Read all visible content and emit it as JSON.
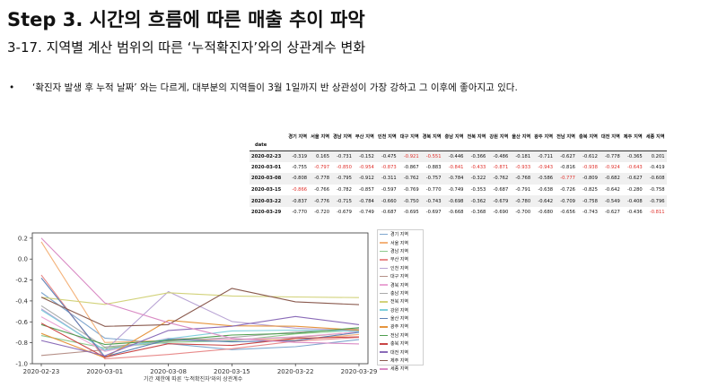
{
  "header": {
    "title": "Step 3.  시간의 흐름에 따른 매출 추이 파악",
    "subtitle": "3-17. 지역별 계산 범위의 따른 ‘누적확진자’와의 상관계수 변화",
    "bullet": "‘확진자 발생 후 누적 날짜’ 와는 다르게, 대부분의 지역들이 3월 1일까지 반 상관성이 가장 강하고 그 이후에 좋아지고 있다."
  },
  "table": {
    "index_label": "date",
    "columns": [
      "경기 지역",
      "서울 지역",
      "경남 지역",
      "부산 지역",
      "인천 지역",
      "대구 지역",
      "경북 지역",
      "충남 지역",
      "전북 지역",
      "강원 지역",
      "울산 지역",
      "광주 지역",
      "전남 지역",
      "충북 지역",
      "대전 지역",
      "제주 지역",
      "세종 지역"
    ],
    "rows": [
      {
        "date": "2020-02-23",
        "values": [
          "-0.319",
          "0.165",
          "-0.731",
          "-0.152",
          "-0.475",
          "-0.921",
          "-0.551",
          "-0.446",
          "-0.366",
          "-0.486",
          "-0.181",
          "-0.711",
          "-0.627",
          "-0.612",
          "-0.778",
          "-0.365",
          "0.201"
        ],
        "red": [
          5,
          6
        ]
      },
      {
        "date": "2020-03-01",
        "values": [
          "-0.755",
          "-0.797",
          "-0.850",
          "-0.954",
          "-0.873",
          "-0.867",
          "-0.883",
          "-0.841",
          "-0.433",
          "-0.871",
          "-0.933",
          "-0.943",
          "-0.816",
          "-0.938",
          "-0.924",
          "-0.643",
          "-0.419"
        ],
        "red": [
          1,
          2,
          3,
          4,
          7,
          8,
          9,
          10,
          11,
          13,
          14,
          15
        ]
      },
      {
        "date": "2020-03-08",
        "values": [
          "-0.808",
          "-0.778",
          "-0.795",
          "-0.912",
          "-0.311",
          "-0.762",
          "-0.757",
          "-0.784",
          "-0.322",
          "-0.762",
          "-0.768",
          "-0.586",
          "-0.777",
          "-0.809",
          "-0.682",
          "-0.627",
          "-0.608"
        ],
        "red": [
          12
        ]
      },
      {
        "date": "2020-03-15",
        "values": [
          "-0.866",
          "-0.766",
          "-0.782",
          "-0.857",
          "-0.597",
          "-0.769",
          "-0.770",
          "-0.749",
          "-0.353",
          "-0.687",
          "-0.791",
          "-0.638",
          "-0.726",
          "-0.825",
          "-0.642",
          "-0.280",
          "-0.758"
        ],
        "red": [
          0
        ]
      },
      {
        "date": "2020-03-22",
        "values": [
          "-0.837",
          "-0.776",
          "-0.715",
          "-0.784",
          "-0.660",
          "-0.750",
          "-0.743",
          "-0.698",
          "-0.362",
          "-0.679",
          "-0.780",
          "-0.642",
          "-0.709",
          "-0.758",
          "-0.549",
          "-0.408",
          "-0.796"
        ],
        "red": []
      },
      {
        "date": "2020-03-29",
        "values": [
          "-0.770",
          "-0.720",
          "-0.679",
          "-0.749",
          "-0.687",
          "-0.695",
          "-0.697",
          "-0.668",
          "-0.368",
          "-0.690",
          "-0.700",
          "-0.680",
          "-0.656",
          "-0.743",
          "-0.627",
          "-0.436",
          "-0.811"
        ],
        "red": [
          16
        ]
      }
    ]
  },
  "chart_data": {
    "type": "line",
    "x": [
      "2020-02-23",
      "2020-03-01",
      "2020-03-08",
      "2020-03-15",
      "2020-03-22",
      "2020-03-29"
    ],
    "xlabel": "기간 제한에 따른 '누적확진자'와의 상관계수",
    "ylim": [
      -1.0,
      0.25
    ],
    "yticks": [
      0.2,
      0.0,
      -0.2,
      -0.4,
      -0.6,
      -0.8,
      -1.0
    ],
    "ytick_labels": [
      "0.2",
      "0.0",
      "-0.2",
      "-0.4",
      "-0.6",
      "-0.8",
      "-1.0"
    ],
    "grid": false,
    "legend": "right",
    "series": [
      {
        "name": "경기 지역",
        "color": "#7fa7cf",
        "values": [
          -0.319,
          -0.755,
          -0.808,
          -0.866,
          -0.837,
          -0.77
        ]
      },
      {
        "name": "서울 지역",
        "color": "#f4b27a",
        "values": [
          0.165,
          -0.797,
          -0.778,
          -0.766,
          -0.776,
          -0.72
        ]
      },
      {
        "name": "경남 지역",
        "color": "#8dc98d",
        "values": [
          -0.731,
          -0.85,
          -0.795,
          -0.782,
          -0.715,
          -0.679
        ]
      },
      {
        "name": "부산 지역",
        "color": "#e88a8a",
        "values": [
          -0.152,
          -0.954,
          -0.912,
          -0.857,
          -0.784,
          -0.749
        ]
      },
      {
        "name": "인천 지역",
        "color": "#b8a3d4",
        "values": [
          -0.475,
          -0.873,
          -0.311,
          -0.597,
          -0.66,
          -0.687
        ]
      },
      {
        "name": "대구 지역",
        "color": "#b59088",
        "values": [
          -0.921,
          -0.867,
          -0.762,
          -0.769,
          -0.75,
          -0.695
        ]
      },
      {
        "name": "경북 지역",
        "color": "#eaa6d5",
        "values": [
          -0.551,
          -0.883,
          -0.757,
          -0.77,
          -0.743,
          -0.697
        ]
      },
      {
        "name": "충남 지역",
        "color": "#aaaaaa",
        "values": [
          -0.446,
          -0.841,
          -0.784,
          -0.749,
          -0.698,
          -0.668
        ]
      },
      {
        "name": "전북 지역",
        "color": "#d2d27a",
        "values": [
          -0.366,
          -0.433,
          -0.322,
          -0.353,
          -0.362,
          -0.368
        ]
      },
      {
        "name": "강원 지역",
        "color": "#7fd0dc",
        "values": [
          -0.486,
          -0.871,
          -0.762,
          -0.687,
          -0.679,
          -0.69
        ]
      },
      {
        "name": "울산 지역",
        "color": "#5b7fb5",
        "values": [
          -0.181,
          -0.933,
          -0.768,
          -0.791,
          -0.78,
          -0.7
        ]
      },
      {
        "name": "광주 지역",
        "color": "#e6953e",
        "values": [
          -0.711,
          -0.943,
          -0.586,
          -0.638,
          -0.642,
          -0.68
        ]
      },
      {
        "name": "전남 지역",
        "color": "#4e9e4e",
        "values": [
          -0.627,
          -0.816,
          -0.777,
          -0.726,
          -0.709,
          -0.656
        ]
      },
      {
        "name": "충북 지역",
        "color": "#c94545",
        "values": [
          -0.612,
          -0.938,
          -0.809,
          -0.825,
          -0.758,
          -0.743
        ]
      },
      {
        "name": "대전 지역",
        "color": "#8a6bb8",
        "values": [
          -0.778,
          -0.924,
          -0.682,
          -0.642,
          -0.549,
          -0.627
        ]
      },
      {
        "name": "제주 지역",
        "color": "#8a5a4e",
        "values": [
          -0.365,
          -0.643,
          -0.627,
          -0.28,
          -0.408,
          -0.436
        ]
      },
      {
        "name": "세종 지역",
        "color": "#d98ac4",
        "values": [
          0.201,
          -0.419,
          -0.608,
          -0.758,
          -0.796,
          -0.811
        ]
      }
    ]
  }
}
